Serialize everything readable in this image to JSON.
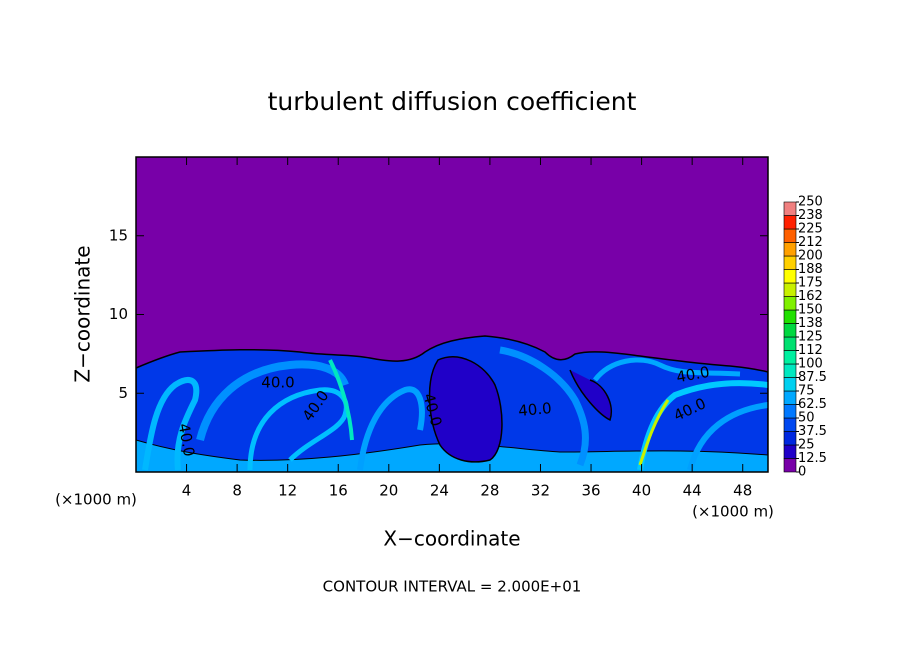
{
  "chart_data": {
    "type": "contour",
    "title": "turbulent diffusion coefficient",
    "x_label": "X−coordinate",
    "y_label": "Z−coordinate",
    "x_unit": "(×1000 m)",
    "y_unit": "(×1000 m)",
    "xlim": [
      0,
      50
    ],
    "ylim": [
      0,
      20
    ],
    "xticks": [
      4,
      8,
      12,
      16,
      20,
      24,
      28,
      32,
      36,
      40,
      44,
      48
    ],
    "yticks": [
      5,
      10,
      15
    ],
    "colorbar": {
      "levels": [
        0,
        12.5,
        25,
        37.5,
        50,
        62.5,
        75,
        87.5,
        100,
        112,
        125,
        138,
        150,
        162,
        175,
        188,
        200,
        212,
        225,
        238,
        250
      ],
      "colors": [
        "#7800a8",
        "#2000c8",
        "#0028e0",
        "#0048f0",
        "#0078ff",
        "#00a8ff",
        "#00d0f0",
        "#00e8c0",
        "#00f0a0",
        "#00e070",
        "#00d840",
        "#20e000",
        "#80f000",
        "#c8f000",
        "#ffff00",
        "#ffd000",
        "#ffa000",
        "#ff6000",
        "#ff2000",
        "#f08080"
      ]
    },
    "contour_labels": [
      "40.0",
      "40.0",
      "40.0",
      "40.0",
      "40.0",
      "40.0",
      "40.0"
    ],
    "footnote": "CONTOUR INTERVAL = 2.000E+01"
  }
}
